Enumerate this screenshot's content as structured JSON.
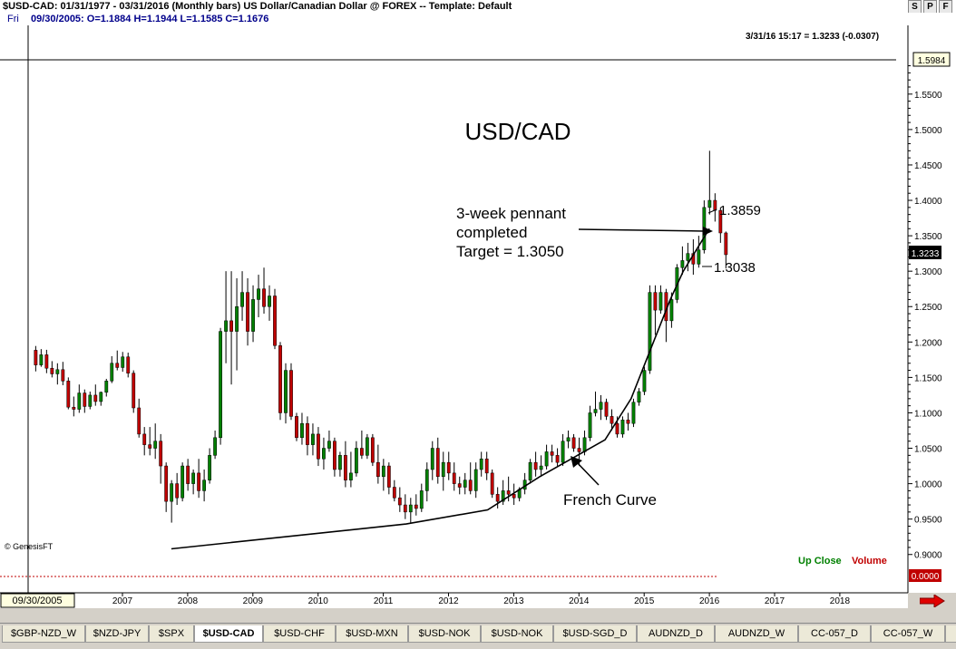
{
  "window": {
    "title": "$USD-CAD:  01/31/1977 - 03/31/2016  (Monthly bars)   US Dollar/Canadian Dollar @ FOREX  --  Template: Default",
    "buttons": [
      "S",
      "P",
      "F"
    ]
  },
  "info": {
    "day": "Fri",
    "ohlc": "09/30/2005:  O=1.1884  H=1.1944  L=1.1585  C=1.1676"
  },
  "last_quote": "3/31/16 15:17 = 1.3233 (-0.0307)",
  "cursor_date": "09/30/2005",
  "cursor_price": "1.5984",
  "current_price": "1.3233",
  "zero_label": "0.0000",
  "legend": {
    "up_close": "Up Close",
    "volume": "Volume"
  },
  "copyright": "© GenesisFT",
  "colors": {
    "up": "#008000",
    "down": "#c00000",
    "line": "#000000",
    "cursor": "#00008b"
  },
  "chart_data": {
    "type": "candlestick",
    "title": "USD/CAD",
    "x_ticks": [
      "2007",
      "2008",
      "2009",
      "2010",
      "2011",
      "2012",
      "2013",
      "2014",
      "2015",
      "2016",
      "2017",
      "2018"
    ],
    "y_ticks": [
      "1.5500",
      "1.5000",
      "1.4500",
      "1.4000",
      "1.3500",
      "1.3000",
      "1.2500",
      "1.2000",
      "1.1500",
      "1.1000",
      "1.0500",
      "1.0000",
      "0.9500",
      "0.9000"
    ],
    "ylim": [
      0.88,
      1.61
    ],
    "annotations": [
      {
        "lines": [
          "3-week pennant",
          "completed",
          "Target = 1.3050"
        ]
      },
      {
        "text": "1.3859",
        "value": 1.3859
      },
      {
        "text": "1.3038",
        "value": 1.3038
      },
      {
        "text": "French Curve"
      }
    ],
    "bars_per_year": 12,
    "first_bar_year": 2005.67,
    "ohlc": [
      [
        1.1884,
        1.1944,
        1.1585,
        1.1676
      ],
      [
        1.1676,
        1.19,
        1.165,
        1.182
      ],
      [
        1.182,
        1.189,
        1.156,
        1.163
      ],
      [
        1.163,
        1.173,
        1.15,
        1.155
      ],
      [
        1.155,
        1.17,
        1.14,
        1.161
      ],
      [
        1.161,
        1.172,
        1.139,
        1.145
      ],
      [
        1.145,
        1.15,
        1.105,
        1.108
      ],
      [
        1.108,
        1.123,
        1.095,
        1.105
      ],
      [
        1.105,
        1.14,
        1.1,
        1.128
      ],
      [
        1.128,
        1.133,
        1.1,
        1.109
      ],
      [
        1.109,
        1.13,
        1.105,
        1.125
      ],
      [
        1.125,
        1.14,
        1.11,
        1.116
      ],
      [
        1.116,
        1.13,
        1.11,
        1.129
      ],
      [
        1.129,
        1.148,
        1.123,
        1.145
      ],
      [
        1.145,
        1.18,
        1.142,
        1.17
      ],
      [
        1.17,
        1.188,
        1.16,
        1.164
      ],
      [
        1.164,
        1.186,
        1.158,
        1.179
      ],
      [
        1.179,
        1.185,
        1.15,
        1.156
      ],
      [
        1.156,
        1.16,
        1.1,
        1.107
      ],
      [
        1.107,
        1.12,
        1.065,
        1.07
      ],
      [
        1.07,
        1.08,
        1.04,
        1.055
      ],
      [
        1.055,
        1.08,
        1.04,
        1.05
      ],
      [
        1.05,
        1.085,
        1.035,
        1.06
      ],
      [
        1.06,
        1.07,
        1.0,
        1.025
      ],
      [
        1.025,
        1.03,
        0.96,
        0.975
      ],
      [
        0.975,
        1.005,
        0.945,
        1.0
      ],
      [
        1.0,
        1.015,
        0.97,
        0.98
      ],
      [
        0.98,
        1.03,
        0.975,
        1.025
      ],
      [
        1.025,
        1.035,
        0.99,
        1.0
      ],
      [
        1.0,
        1.02,
        0.985,
        1.015
      ],
      [
        1.015,
        1.035,
        0.98,
        0.99
      ],
      [
        0.99,
        1.02,
        0.975,
        1.005
      ],
      [
        1.005,
        1.05,
        1.0,
        1.04
      ],
      [
        1.04,
        1.075,
        1.035,
        1.065
      ],
      [
        1.065,
        1.22,
        1.055,
        1.215
      ],
      [
        1.215,
        1.3,
        1.17,
        1.23
      ],
      [
        1.23,
        1.3,
        1.14,
        1.215
      ],
      [
        1.215,
        1.29,
        1.16,
        1.25
      ],
      [
        1.25,
        1.3,
        1.23,
        1.27
      ],
      [
        1.27,
        1.29,
        1.195,
        1.215
      ],
      [
        1.215,
        1.28,
        1.2,
        1.26
      ],
      [
        1.26,
        1.295,
        1.235,
        1.275
      ],
      [
        1.275,
        1.305,
        1.24,
        1.25
      ],
      [
        1.25,
        1.28,
        1.23,
        1.265
      ],
      [
        1.265,
        1.275,
        1.19,
        1.195
      ],
      [
        1.195,
        1.2,
        1.09,
        1.1
      ],
      [
        1.1,
        1.17,
        1.085,
        1.16
      ],
      [
        1.16,
        1.17,
        1.09,
        1.095
      ],
      [
        1.095,
        1.1,
        1.06,
        1.065
      ],
      [
        1.065,
        1.1,
        1.055,
        1.085
      ],
      [
        1.085,
        1.095,
        1.04,
        1.055
      ],
      [
        1.055,
        1.085,
        1.04,
        1.07
      ],
      [
        1.07,
        1.08,
        1.025,
        1.035
      ],
      [
        1.035,
        1.065,
        1.02,
        1.05
      ],
      [
        1.05,
        1.075,
        1.045,
        1.06
      ],
      [
        1.06,
        1.065,
        1.01,
        1.02
      ],
      [
        1.02,
        1.045,
        1.01,
        1.04
      ],
      [
        1.04,
        1.06,
        0.995,
        1.005
      ],
      [
        1.005,
        1.045,
        0.995,
        1.015
      ],
      [
        1.015,
        1.06,
        1.01,
        1.05
      ],
      [
        1.05,
        1.075,
        1.035,
        1.04
      ],
      [
        1.04,
        1.07,
        1.035,
        1.065
      ],
      [
        1.065,
        1.07,
        1.025,
        1.03
      ],
      [
        1.03,
        1.055,
        1.0,
        1.01
      ],
      [
        1.01,
        1.035,
        0.99,
        1.025
      ],
      [
        1.025,
        1.03,
        0.985,
        0.995
      ],
      [
        0.995,
        1.005,
        0.975,
        0.98
      ],
      [
        0.98,
        0.995,
        0.96,
        0.97
      ],
      [
        0.97,
        0.985,
        0.95,
        0.96
      ],
      [
        0.96,
        0.98,
        0.945,
        0.97
      ],
      [
        0.97,
        0.985,
        0.955,
        0.965
      ],
      [
        0.965,
        1.0,
        0.96,
        0.99
      ],
      [
        0.99,
        1.03,
        0.975,
        1.02
      ],
      [
        1.02,
        1.06,
        1.005,
        1.05
      ],
      [
        1.05,
        1.065,
        1.0,
        1.01
      ],
      [
        1.01,
        1.045,
        0.99,
        1.03
      ],
      [
        1.03,
        1.045,
        1.005,
        1.015
      ],
      [
        1.015,
        1.03,
        0.99,
        1.0
      ],
      [
        1.0,
        1.01,
        0.985,
        0.995
      ],
      [
        0.995,
        1.015,
        0.985,
        1.005
      ],
      [
        1.005,
        1.03,
        0.985,
        0.99
      ],
      [
        0.99,
        1.03,
        0.98,
        1.02
      ],
      [
        1.02,
        1.045,
        1.01,
        1.035
      ],
      [
        1.035,
        1.045,
        1.005,
        1.015
      ],
      [
        1.015,
        1.02,
        0.98,
        0.985
      ],
      [
        0.985,
        0.995,
        0.965,
        0.975
      ],
      [
        0.975,
        1.005,
        0.97,
        0.99
      ],
      [
        0.99,
        1.01,
        0.975,
        0.985
      ],
      [
        0.985,
        1.0,
        0.97,
        0.98
      ],
      [
        0.98,
        0.995,
        0.975,
        0.992
      ],
      [
        0.992,
        1.015,
        0.985,
        1.005
      ],
      [
        1.005,
        1.035,
        1.0,
        1.03
      ],
      [
        1.03,
        1.045,
        1.01,
        1.02
      ],
      [
        1.02,
        1.04,
        1.01,
        1.025
      ],
      [
        1.025,
        1.055,
        1.02,
        1.045
      ],
      [
        1.045,
        1.055,
        1.03,
        1.04
      ],
      [
        1.04,
        1.05,
        1.025,
        1.03
      ],
      [
        1.03,
        1.07,
        1.025,
        1.06
      ],
      [
        1.06,
        1.075,
        1.05,
        1.065
      ],
      [
        1.065,
        1.07,
        1.045,
        1.05
      ],
      [
        1.05,
        1.065,
        1.025,
        1.045
      ],
      [
        1.045,
        1.075,
        1.04,
        1.065
      ],
      [
        1.065,
        1.11,
        1.06,
        1.1
      ],
      [
        1.1,
        1.13,
        1.095,
        1.105
      ],
      [
        1.105,
        1.125,
        1.09,
        1.115
      ],
      [
        1.115,
        1.12,
        1.09,
        1.095
      ],
      [
        1.095,
        1.105,
        1.075,
        1.085
      ],
      [
        1.085,
        1.095,
        1.065,
        1.07
      ],
      [
        1.07,
        1.095,
        1.065,
        1.09
      ],
      [
        1.09,
        1.1,
        1.075,
        1.085
      ],
      [
        1.085,
        1.12,
        1.08,
        1.115
      ],
      [
        1.115,
        1.135,
        1.11,
        1.13
      ],
      [
        1.13,
        1.165,
        1.125,
        1.16
      ],
      [
        1.16,
        1.28,
        1.155,
        1.27
      ],
      [
        1.27,
        1.28,
        1.21,
        1.245
      ],
      [
        1.245,
        1.28,
        1.24,
        1.27
      ],
      [
        1.27,
        1.275,
        1.2,
        1.23
      ],
      [
        1.23,
        1.27,
        1.22,
        1.26
      ],
      [
        1.26,
        1.31,
        1.255,
        1.305
      ],
      [
        1.305,
        1.335,
        1.295,
        1.315
      ],
      [
        1.315,
        1.34,
        1.3,
        1.325
      ],
      [
        1.325,
        1.345,
        1.295,
        1.31
      ],
      [
        1.31,
        1.35,
        1.305,
        1.33
      ],
      [
        1.33,
        1.4,
        1.325,
        1.39
      ],
      [
        1.39,
        1.47,
        1.38,
        1.4
      ],
      [
        1.4,
        1.41,
        1.37,
        1.3859
      ],
      [
        1.3859,
        1.39,
        1.34,
        1.354
      ],
      [
        1.354,
        1.356,
        1.3038,
        1.3233
      ]
    ],
    "curve_points": [
      [
        2007.75,
        0.908
      ],
      [
        2011.35,
        0.943
      ],
      [
        2012.6,
        0.963
      ],
      [
        2013.4,
        1.01
      ],
      [
        2014.4,
        1.062
      ],
      [
        2014.8,
        1.12
      ],
      [
        2015.1,
        1.19
      ],
      [
        2015.4,
        1.26
      ],
      [
        2015.6,
        1.3
      ],
      [
        2016.0,
        1.36
      ]
    ]
  },
  "tabs": [
    "$GBP-NZD_W",
    "$NZD-JPY",
    "$SPX",
    "$USD-CAD",
    "$USD-CHF",
    "$USD-MXN",
    "$USD-NOK",
    "$USD-NOK",
    "$USD-SGD_D",
    "AUDNZD_D",
    "AUDNZD_W",
    "CC-057_D",
    "CC-057_W",
    "C"
  ],
  "active_tab": 3
}
